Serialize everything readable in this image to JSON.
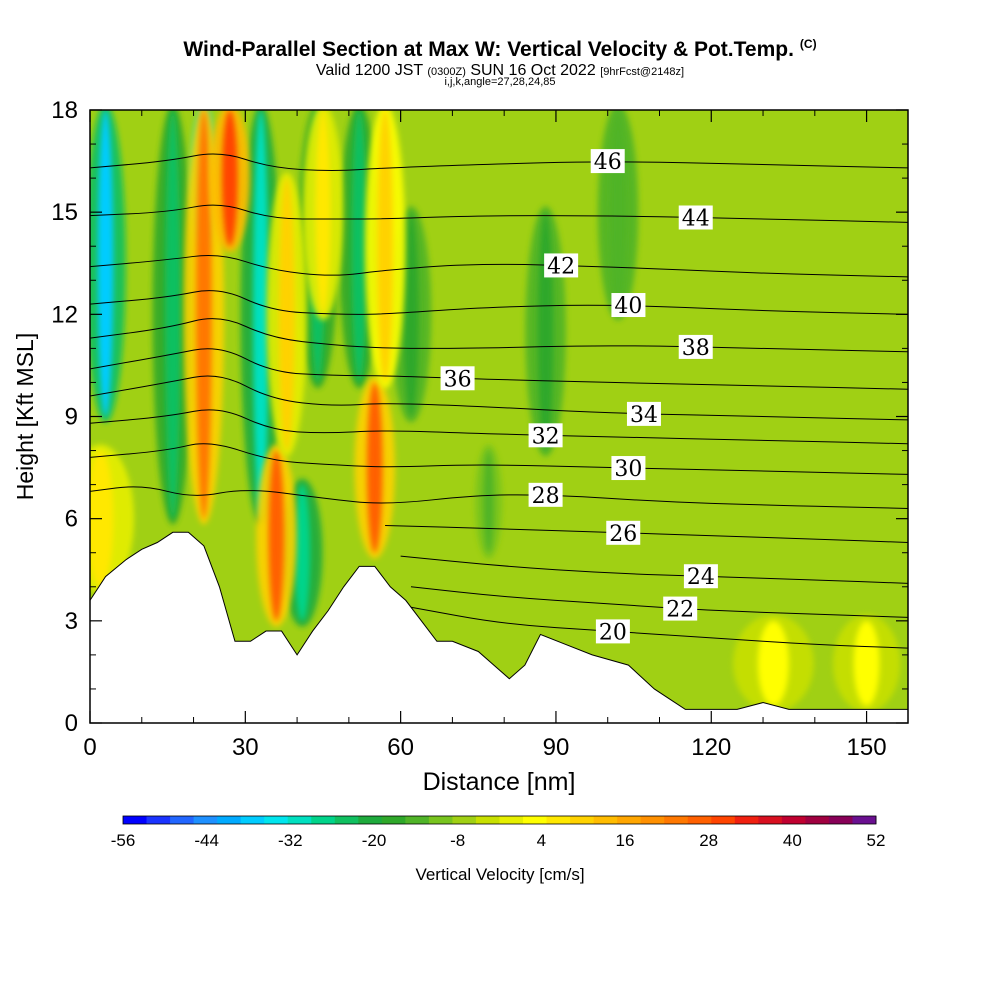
{
  "title": {
    "main": "Wind-Parallel Section at Max W: Vertical Velocity & Pot.Temp.",
    "main_unit": "(C)",
    "sub_valid": "Valid 1200 JST",
    "sub_utc": "(0300Z)",
    "sub_date": "SUN 16 Oct 2022",
    "sub_fcst": "[9hrFcst@2148z]",
    "indices": "i,j,k,angle=27,28,24,85"
  },
  "chart_data": {
    "type": "heatmap",
    "xlabel": "Distance [nm]",
    "ylabel": "Height [Kft MSL]",
    "xlim": [
      0,
      158
    ],
    "ylim": [
      0,
      18
    ],
    "x_ticks": [
      0,
      30,
      60,
      90,
      120,
      150
    ],
    "y_ticks": [
      0,
      3,
      6,
      9,
      12,
      15,
      18
    ],
    "background_value": 3,
    "updraft_cells": [
      {
        "x": 2,
        "y0": 4,
        "y1": 8,
        "w": 5,
        "value": 16
      },
      {
        "x": 22,
        "y0": 6,
        "y1": 18,
        "w": 3,
        "value": 38
      },
      {
        "x": 27,
        "y0": 14,
        "y1": 18,
        "w": 3,
        "value": 44
      },
      {
        "x": 36,
        "y0": 3,
        "y1": 8,
        "w": 3,
        "value": 42
      },
      {
        "x": 38,
        "y0": 8,
        "y1": 16,
        "w": 3,
        "value": 20
      },
      {
        "x": 55,
        "y0": 5,
        "y1": 10,
        "w": 3,
        "value": 42
      },
      {
        "x": 57,
        "y0": 10,
        "y1": 18,
        "w": 3,
        "value": 22
      },
      {
        "x": 45,
        "y0": 12,
        "y1": 18,
        "w": 3,
        "value": 18
      },
      {
        "x": 132,
        "y0": 0.5,
        "y1": 3,
        "w": 6,
        "value": 14
      },
      {
        "x": 150,
        "y0": 0.5,
        "y1": 3,
        "w": 5,
        "value": 12
      }
    ],
    "downdraft_cells": [
      {
        "x": 3,
        "y0": 9,
        "y1": 18,
        "w": 3,
        "value": -36
      },
      {
        "x": 16,
        "y0": 6,
        "y1": 18,
        "w": 3,
        "value": -20
      },
      {
        "x": 22,
        "y0": 14,
        "y1": 18,
        "w": 2,
        "value": -44
      },
      {
        "x": 33,
        "y0": 6,
        "y1": 18,
        "w": 3,
        "value": -28
      },
      {
        "x": 41,
        "y0": 3,
        "y1": 7,
        "w": 3,
        "value": -22
      },
      {
        "x": 44,
        "y0": 10,
        "y1": 18,
        "w": 3,
        "value": -20
      },
      {
        "x": 52,
        "y0": 10,
        "y1": 18,
        "w": 3,
        "value": -18
      },
      {
        "x": 62,
        "y0": 9,
        "y1": 15,
        "w": 3,
        "value": -12
      },
      {
        "x": 88,
        "y0": 8,
        "y1": 15,
        "w": 3,
        "value": -10
      },
      {
        "x": 102,
        "y0": 12,
        "y1": 18,
        "w": 3,
        "value": -8
      },
      {
        "x": 77,
        "y0": 5,
        "y1": 8,
        "w": 2,
        "value": -6
      }
    ],
    "terrain_kft": [
      [
        0,
        3.6
      ],
      [
        3,
        4.3
      ],
      [
        7,
        4.8
      ],
      [
        10,
        5.1
      ],
      [
        13,
        5.3
      ],
      [
        16,
        5.6
      ],
      [
        19,
        5.6
      ],
      [
        22,
        5.2
      ],
      [
        25,
        4.0
      ],
      [
        28,
        2.4
      ],
      [
        31,
        2.4
      ],
      [
        34,
        2.7
      ],
      [
        37,
        2.7
      ],
      [
        40,
        2.0
      ],
      [
        43,
        2.7
      ],
      [
        46,
        3.3
      ],
      [
        49,
        4.0
      ],
      [
        52,
        4.6
      ],
      [
        55,
        4.6
      ],
      [
        58,
        4.0
      ],
      [
        61,
        3.6
      ],
      [
        64,
        3.0
      ],
      [
        67,
        2.4
      ],
      [
        70,
        2.4
      ],
      [
        75,
        2.1
      ],
      [
        78,
        1.7
      ],
      [
        81,
        1.3
      ],
      [
        84,
        1.7
      ],
      [
        87,
        2.6
      ],
      [
        92,
        2.3
      ],
      [
        97,
        2.0
      ],
      [
        104,
        1.7
      ],
      [
        109,
        1.0
      ],
      [
        112,
        0.7
      ],
      [
        115,
        0.4
      ],
      [
        125,
        0.4
      ],
      [
        130,
        0.6
      ],
      [
        135,
        0.4
      ],
      [
        158,
        0.4
      ]
    ],
    "isentropes": [
      {
        "value": 20,
        "label": "20",
        "label_x": 101,
        "points": [
          [
            62,
            3.4
          ],
          [
            80,
            2.9
          ],
          [
            100,
            2.7
          ],
          [
            120,
            2.5
          ],
          [
            140,
            2.3
          ],
          [
            158,
            2.2
          ]
        ]
      },
      {
        "value": 22,
        "label": "22",
        "label_x": 114,
        "points": [
          [
            62,
            4.0
          ],
          [
            80,
            3.7
          ],
          [
            100,
            3.5
          ],
          [
            120,
            3.3
          ],
          [
            140,
            3.2
          ],
          [
            158,
            3.1
          ]
        ]
      },
      {
        "value": 24,
        "label": "24",
        "label_x": 118,
        "points": [
          [
            60,
            4.9
          ],
          [
            80,
            4.6
          ],
          [
            100,
            4.4
          ],
          [
            120,
            4.3
          ],
          [
            140,
            4.2
          ],
          [
            158,
            4.1
          ]
        ]
      },
      {
        "value": 26,
        "label": "26",
        "label_x": 103,
        "points": [
          [
            57,
            5.8
          ],
          [
            80,
            5.7
          ],
          [
            100,
            5.6
          ],
          [
            120,
            5.5
          ],
          [
            140,
            5.4
          ],
          [
            158,
            5.3
          ]
        ]
      },
      {
        "value": 28,
        "label": "28",
        "label_x": 88,
        "points": [
          [
            0,
            6.8
          ],
          [
            10,
            7.0
          ],
          [
            20,
            6.6
          ],
          [
            30,
            6.9
          ],
          [
            45,
            6.6
          ],
          [
            57,
            6.4
          ],
          [
            75,
            6.7
          ],
          [
            90,
            6.7
          ],
          [
            110,
            6.5
          ],
          [
            130,
            6.4
          ],
          [
            158,
            6.3
          ]
        ]
      },
      {
        "value": 30,
        "label": "30",
        "label_x": 104,
        "points": [
          [
            0,
            7.8
          ],
          [
            15,
            8.0
          ],
          [
            23,
            8.3
          ],
          [
            35,
            7.7
          ],
          [
            45,
            7.6
          ],
          [
            57,
            7.5
          ],
          [
            75,
            7.6
          ],
          [
            100,
            7.5
          ],
          [
            130,
            7.4
          ],
          [
            158,
            7.3
          ]
        ]
      },
      {
        "value": 32,
        "label": "32",
        "label_x": 88,
        "points": [
          [
            0,
            8.8
          ],
          [
            15,
            9.0
          ],
          [
            25,
            9.3
          ],
          [
            35,
            8.6
          ],
          [
            45,
            8.5
          ],
          [
            57,
            8.6
          ],
          [
            75,
            8.5
          ],
          [
            100,
            8.4
          ],
          [
            130,
            8.3
          ],
          [
            158,
            8.2
          ]
        ]
      },
      {
        "value": 34,
        "label": "34",
        "label_x": 107,
        "points": [
          [
            0,
            9.6
          ],
          [
            15,
            10.0
          ],
          [
            25,
            10.3
          ],
          [
            35,
            9.5
          ],
          [
            47,
            9.3
          ],
          [
            57,
            9.4
          ],
          [
            75,
            9.3
          ],
          [
            100,
            9.1
          ],
          [
            130,
            9.0
          ],
          [
            158,
            8.9
          ]
        ]
      },
      {
        "value": 36,
        "label": "36",
        "label_x": 71,
        "points": [
          [
            0,
            10.4
          ],
          [
            15,
            10.8
          ],
          [
            25,
            11.1
          ],
          [
            35,
            10.3
          ],
          [
            47,
            10.2
          ],
          [
            57,
            10.2
          ],
          [
            75,
            10.1
          ],
          [
            100,
            10.0
          ],
          [
            130,
            9.9
          ],
          [
            158,
            9.8
          ]
        ]
      },
      {
        "value": 38,
        "label": "38",
        "label_x": 117,
        "points": [
          [
            0,
            11.3
          ],
          [
            15,
            11.6
          ],
          [
            25,
            12.0
          ],
          [
            35,
            11.3
          ],
          [
            47,
            11.1
          ],
          [
            57,
            11.0
          ],
          [
            75,
            11.0
          ],
          [
            100,
            11.1
          ],
          [
            130,
            11.0
          ],
          [
            158,
            10.9
          ]
        ]
      },
      {
        "value": 40,
        "label": "40",
        "label_x": 104,
        "points": [
          [
            0,
            12.3
          ],
          [
            15,
            12.5
          ],
          [
            25,
            12.8
          ],
          [
            35,
            12.1
          ],
          [
            47,
            12.0
          ],
          [
            57,
            12.0
          ],
          [
            75,
            12.2
          ],
          [
            100,
            12.3
          ],
          [
            130,
            12.1
          ],
          [
            158,
            12.0
          ]
        ]
      },
      {
        "value": 42,
        "label": "42",
        "label_x": 91,
        "points": [
          [
            0,
            13.4
          ],
          [
            15,
            13.6
          ],
          [
            25,
            13.8
          ],
          [
            35,
            13.3
          ],
          [
            47,
            13.1
          ],
          [
            57,
            13.3
          ],
          [
            75,
            13.5
          ],
          [
            100,
            13.4
          ],
          [
            130,
            13.2
          ],
          [
            158,
            13.1
          ]
        ]
      },
      {
        "value": 44,
        "label": "44",
        "label_x": 117,
        "points": [
          [
            0,
            14.9
          ],
          [
            15,
            15.0
          ],
          [
            25,
            15.3
          ],
          [
            35,
            14.8
          ],
          [
            47,
            14.8
          ],
          [
            57,
            14.8
          ],
          [
            75,
            14.9
          ],
          [
            100,
            14.9
          ],
          [
            130,
            14.8
          ],
          [
            158,
            14.7
          ]
        ]
      },
      {
        "value": 46,
        "label": "46",
        "label_x": 100,
        "points": [
          [
            0,
            16.3
          ],
          [
            15,
            16.5
          ],
          [
            25,
            16.8
          ],
          [
            35,
            16.3
          ],
          [
            47,
            16.2
          ],
          [
            57,
            16.3
          ],
          [
            75,
            16.4
          ],
          [
            100,
            16.5
          ],
          [
            130,
            16.4
          ],
          [
            158,
            16.3
          ]
        ]
      }
    ],
    "colorbar": {
      "min": -56,
      "max": 52,
      "step": 4,
      "tick_labels": [
        "-56",
        "-44",
        "-32",
        "-20",
        "-8",
        "4",
        "16",
        "28",
        "40",
        "52"
      ],
      "label": "Vertical Velocity [cm/s]",
      "colors": [
        "#0000ff",
        "#1a33ff",
        "#2266ff",
        "#1e90ff",
        "#00aaff",
        "#00ccff",
        "#00e5ee",
        "#00e0c0",
        "#00d48a",
        "#10c060",
        "#1eaa3c",
        "#2fa82a",
        "#50b428",
        "#78c41e",
        "#a0d014",
        "#c8e000",
        "#e6ef00",
        "#ffff00",
        "#ffe800",
        "#ffd200",
        "#ffbc00",
        "#ffa600",
        "#ff9000",
        "#ff7800",
        "#ff6000",
        "#ff4400",
        "#f02010",
        "#d81020",
        "#c00030",
        "#a00040",
        "#880058",
        "#6a1090"
      ]
    }
  }
}
